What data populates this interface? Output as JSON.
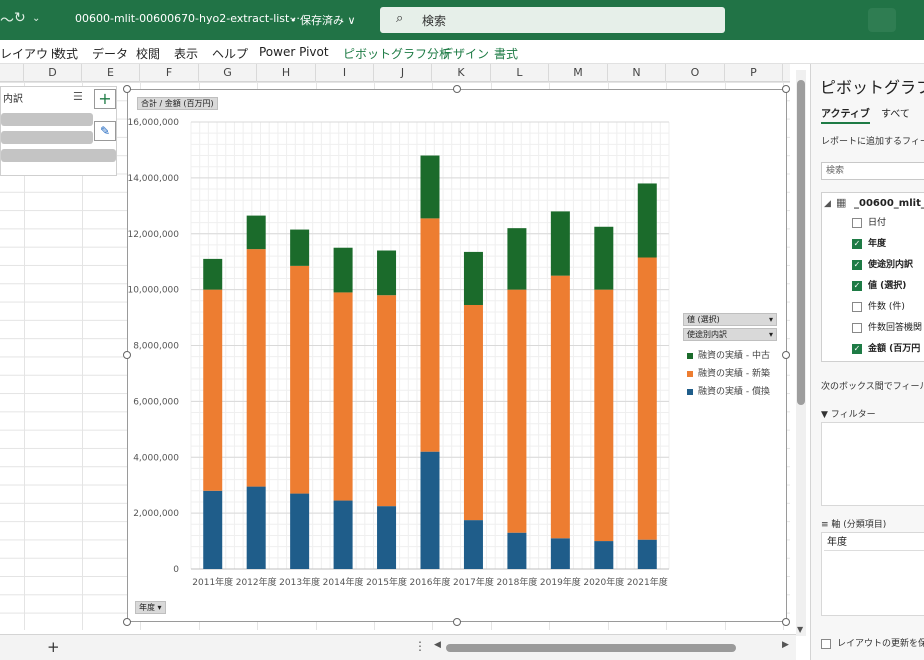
{
  "titlebar": {
    "file_title": "00600-mlit-00600670-hyo2-extract-list···",
    "saved_status": "• 保存済み ∨",
    "search_placeholder": "検索",
    "undo_icon": "redo-icon"
  },
  "menu": {
    "items": [
      "レイアウト",
      "数式",
      "データ",
      "校閲",
      "表示",
      "ヘルプ",
      "Power Pivot",
      "ピボットグラフ分析",
      "デザイン",
      "書式"
    ],
    "highlighted": [
      "ピボットグラフ分析",
      "デザイン",
      "書式"
    ]
  },
  "columns": [
    "D",
    "E",
    "F",
    "G",
    "H",
    "I",
    "J",
    "K",
    "L",
    "M",
    "N",
    "O",
    "P"
  ],
  "slicer": {
    "title": "内訳"
  },
  "chart": {
    "value_field_button": "合計 / 金額 (百万円)",
    "axis_field_button": "年度 ▾",
    "legend_field_value": "値 (選択)",
    "legend_field_series": "使途別内訳",
    "colors": {
      "chuko": "#1b6b2b",
      "shinchiku": "#ed7d31",
      "shokan": "#1f5d8a"
    }
  },
  "chart_data": {
    "type": "bar",
    "stacked": true,
    "categories": [
      "2011年度",
      "2012年度",
      "2013年度",
      "2014年度",
      "2015年度",
      "2016年度",
      "2017年度",
      "2018年度",
      "2019年度",
      "2020年度",
      "2021年度"
    ],
    "series": [
      {
        "name": "融資の実績 - 償換",
        "values": [
          2800000,
          2950000,
          2700000,
          2450000,
          2250000,
          4200000,
          1750000,
          1300000,
          1100000,
          1000000,
          1050000
        ]
      },
      {
        "name": "融資の実績 - 新築",
        "values": [
          7200000,
          8500000,
          8150000,
          7450000,
          7550000,
          8350000,
          7700000,
          8700000,
          9400000,
          9000000,
          10100000
        ]
      },
      {
        "name": "融資の実績 - 中古",
        "values": [
          1100000,
          1200000,
          1300000,
          1600000,
          1600000,
          2250000,
          1900000,
          2200000,
          2300000,
          2250000,
          2650000
        ]
      }
    ],
    "yticks": [
      "0",
      "2,000,000",
      "4,000,000",
      "6,000,000",
      "8,000,000",
      "10,000,000",
      "12,000,000",
      "14,000,000",
      "16,000,000"
    ],
    "ylim": [
      0,
      16000000
    ],
    "legend_order": [
      "融資の実績 - 中古",
      "融資の実績 - 新築",
      "融資の実績 - 償換"
    ],
    "legend_position": "right",
    "grid": true
  },
  "pane": {
    "title": "ピボットグラフの",
    "tab_active": "アクティブ",
    "tab_all": "すべて",
    "report_fields_text": "レポートに追加するフィールド",
    "search_placeholder": "検索",
    "table_name": "_00600_mlit_",
    "fields": [
      {
        "label": "日付",
        "checked": false
      },
      {
        "label": "年度",
        "checked": true
      },
      {
        "label": "使途別内訳",
        "checked": true
      },
      {
        "label": "値 (選択)",
        "checked": true
      },
      {
        "label": "件数 (件)",
        "checked": false
      },
      {
        "label": "件数回答機関",
        "checked": false
      },
      {
        "label": "金額 (百万円",
        "checked": true
      }
    ],
    "drag_text": "次のボックス間でフィールドを",
    "filter_label": "フィルター",
    "axis_label": "軸 (分類項目)",
    "axis_value": "年度",
    "defer_label": "レイアウトの更新を保"
  },
  "bottombar": {
    "add_sheet": "+",
    "more_icon": "⋮"
  }
}
